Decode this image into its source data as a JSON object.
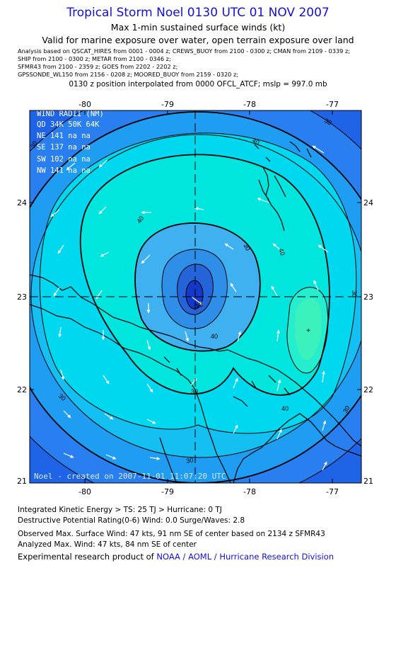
{
  "header": {
    "title": "Tropical Storm Noel 0130 UTC 01 NOV 2007",
    "subtitle": "Max 1-min sustained surface winds (kt)",
    "validity": "Valid for marine exposure over water, open terrain exposure over land",
    "sources": [
      "Analysis based on  QSCAT_HIRES from 0001 - 0004 z;  CREWS_BUOY from 2100 - 0300 z;  CMAN from 2109 - 0339 z;",
      "SHIP from 2100 - 0300 z;  METAR from 2100 - 0346 z;",
      "SFMR43 from 2100 - 2359 z;  GOES from 2202 - 2202 z;",
      "GPSSONDE_WL150 from 2156 - 0208 z;  MOORED_BUOY from 2159 - 0320 z;"
    ],
    "interpolation": "0130 z position interpolated from 0000 OFCL_ATCF; mslp = 997.0 mb"
  },
  "map": {
    "x_ticks": [
      "-80",
      "-79",
      "-78",
      "-77"
    ],
    "y_ticks": [
      "24",
      "23",
      "22",
      "21"
    ],
    "x_tick_values": [
      -80,
      -79,
      -78,
      -77
    ],
    "y_tick_values": [
      24,
      23,
      22,
      21
    ],
    "lon_range": [
      -80.55,
      -76.95
    ],
    "lat_range": [
      21.0,
      24.95
    ],
    "center": {
      "lon": -78.55,
      "lat": 23.0
    },
    "max_wind_marker": {
      "lon": -77.25,
      "lat": 22.62,
      "symbol": "+"
    },
    "contour_labels": [
      "30",
      "40",
      "40",
      "40",
      "30",
      "30",
      "30",
      "30",
      "30",
      "20",
      "30",
      "40",
      "40",
      "30"
    ],
    "wind_radii": {
      "title": "WIND RADII (NM)",
      "header": "QD  34K  50K  64K",
      "rows": [
        "NE  141   na   na",
        "SE  137   na   na",
        "SW  102   na   na",
        "NW  141   na   na"
      ]
    },
    "watermark": "Noel - created on 2007-11-01 11:07:20 UTC",
    "colors": {
      "fill_outer": "#1f64e6",
      "fill_15kt": "#2a7ff0",
      "fill_20kt": "#1e9df2",
      "fill_25kt": "#14bff2",
      "fill_30kt": "#00d8f0",
      "fill_35kt": "#00e6de",
      "fill_40kt": "#25eecf",
      "fill_inner": "#3cf2bc",
      "core_1": "#3fb0f0",
      "core_2": "#2f8ee8",
      "core_3": "#2464d8",
      "core_4": "#1438c8",
      "land": "#000000",
      "arrows": "#ffffff",
      "watermark": "#d8e8ff"
    }
  },
  "footer": {
    "ike": "Integrated Kinetic Energy > TS: 25 TJ   > Hurricane: 0 TJ",
    "dpr": "Destructive Potential Rating(0-6)   Wind: 0.0 Surge/Waves: 2.8",
    "observed": "Observed Max. Surface Wind: 47 kts, 91 nm SE of center based on 2134 z SFMR43",
    "analyzed": "Analyzed Max. Wind: 47 kts, 84 nm SE of center",
    "credit_prefix": "Experimental research product of ",
    "credit_link": "NOAA / AOML / Hurricane Research Division"
  }
}
